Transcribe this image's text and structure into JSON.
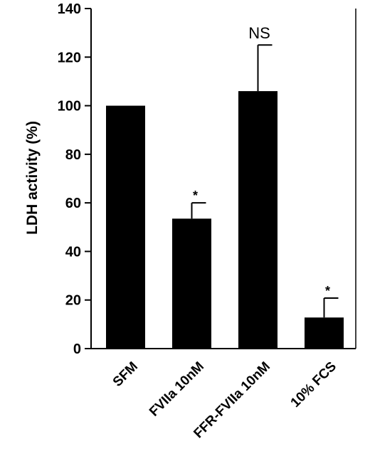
{
  "chart_data": {
    "type": "bar",
    "title": "",
    "xlabel": "",
    "ylabel": "LDH activity (%)",
    "ylim": [
      0,
      140
    ],
    "yticks": [
      "0",
      "20",
      "40",
      "60",
      "80",
      "100",
      "120",
      "140"
    ],
    "categories": [
      "SFM",
      "FVIIa 10nM",
      "FFR-FVIIa 10nM",
      "10% FCS"
    ],
    "values": [
      100,
      53.5,
      106,
      12.8
    ],
    "errors": [
      0,
      6.5,
      19,
      8
    ],
    "annotations": [
      "",
      "*",
      "NS",
      "*"
    ],
    "bar_color": "#000000",
    "grid": false
  }
}
